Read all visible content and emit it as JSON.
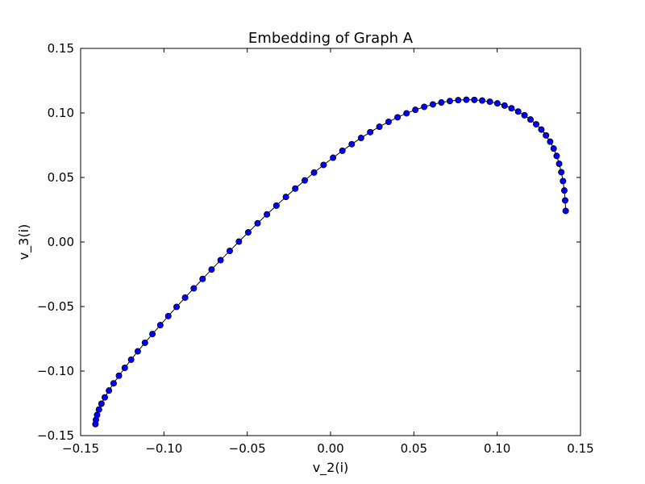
{
  "chart_data": {
    "type": "line",
    "title": "Embedding of Graph A",
    "xlabel": "v_2(i)",
    "ylabel": "v_3(i)",
    "xlim": [
      -0.15,
      0.15
    ],
    "ylim": [
      -0.15,
      0.15
    ],
    "x_ticks": [
      "−0.15",
      "−0.10",
      "−0.05",
      "0.00",
      "0.05",
      "0.10",
      "0.15"
    ],
    "y_ticks": [
      "−0.15",
      "−0.10",
      "−0.05",
      "0.00",
      "0.05",
      "0.10",
      "0.15"
    ],
    "grid": false,
    "series": [
      {
        "color": "#0000ff",
        "line_color": "#000000",
        "marker": "circle",
        "x": [
          -0.1411,
          -0.1408,
          -0.1401,
          -0.139,
          -0.1375,
          -0.1355,
          -0.133,
          -0.1302,
          -0.127,
          -0.1235,
          -0.1197,
          -0.1157,
          -0.1114,
          -0.1069,
          -0.1022,
          -0.0974,
          -0.0924,
          -0.0873,
          -0.0821,
          -0.0768,
          -0.0714,
          -0.066,
          -0.0605,
          -0.055,
          -0.0494,
          -0.0438,
          -0.0382,
          -0.0325,
          -0.0268,
          -0.0212,
          -0.0155,
          -0.0099,
          -0.0042,
          0.0015,
          0.0071,
          0.0127,
          0.0183,
          0.0238,
          0.0293,
          0.0348,
          0.0402,
          0.0456,
          0.0509,
          0.0562,
          0.0614,
          0.0665,
          0.0716,
          0.0766,
          0.0815,
          0.0863,
          0.091,
          0.0956,
          0.1001,
          0.1044,
          0.1086,
          0.1126,
          0.1164,
          0.12,
          0.1234,
          0.1265,
          0.1293,
          0.1318,
          0.1339,
          0.1357,
          0.1372,
          0.1385,
          0.1395,
          0.1403,
          0.1408,
          0.1411
        ],
        "y": [
          -0.1411,
          -0.1378,
          -0.134,
          -0.1298,
          -0.1253,
          -0.1204,
          -0.1151,
          -0.1095,
          -0.1036,
          -0.0975,
          -0.0912,
          -0.0847,
          -0.0781,
          -0.0713,
          -0.0644,
          -0.0574,
          -0.0503,
          -0.0431,
          -0.0359,
          -0.0286,
          -0.0213,
          -0.0141,
          -0.0069,
          0.0003,
          0.0075,
          0.0145,
          0.0214,
          0.0282,
          0.0349,
          0.0414,
          0.0477,
          0.0538,
          0.0597,
          0.0653,
          0.0707,
          0.0758,
          0.0806,
          0.0851,
          0.0893,
          0.0931,
          0.0966,
          0.0997,
          0.1024,
          0.1047,
          0.1066,
          0.1081,
          0.1092,
          0.1099,
          0.1102,
          0.1101,
          0.1096,
          0.1087,
          0.1074,
          0.1057,
          0.1036,
          0.1011,
          0.0982,
          0.0949,
          0.0912,
          0.0871,
          0.0826,
          0.0777,
          0.0724,
          0.0667,
          0.0606,
          0.0541,
          0.0472,
          0.0399,
          0.0322,
          0.0241
        ]
      }
    ]
  }
}
